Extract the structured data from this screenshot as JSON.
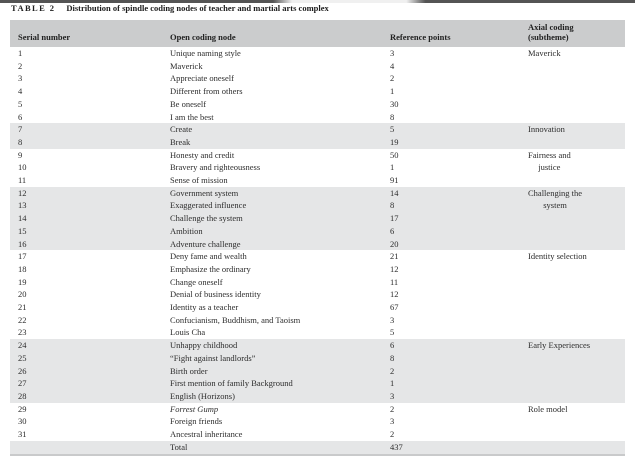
{
  "accent_colors": {
    "header_bg": "#cbcccd",
    "band_bg": "#e5e6e7",
    "text": "#2d2d2d"
  },
  "table": {
    "title_label": "TABLE 2",
    "title_text": "Distribution of spindle coding nodes of teacher and martial arts complex",
    "columns": [
      "Serial number",
      "Open coding node",
      "Reference points",
      "Axial coding\n(subtheme)"
    ],
    "groups": [
      {
        "axial": "Maverick",
        "shaded": false,
        "rows": [
          {
            "serial": "1",
            "node": "Unique naming style",
            "ref": "3"
          },
          {
            "serial": "2",
            "node": "Maverick",
            "ref": "4"
          },
          {
            "serial": "3",
            "node": "Appreciate oneself",
            "ref": "2"
          },
          {
            "serial": "4",
            "node": "Different from others",
            "ref": "1"
          },
          {
            "serial": "5",
            "node": "Be oneself",
            "ref": "30"
          },
          {
            "serial": "6",
            "node": "I am the best",
            "ref": "8"
          }
        ]
      },
      {
        "axial": "Innovation",
        "shaded": true,
        "rows": [
          {
            "serial": "7",
            "node": "Create",
            "ref": "5"
          },
          {
            "serial": "8",
            "node": "Break",
            "ref": "19"
          }
        ]
      },
      {
        "axial": "Fairness and\njustice",
        "shaded": false,
        "rows": [
          {
            "serial": "9",
            "node": "Honesty and credit",
            "ref": "50"
          },
          {
            "serial": "10",
            "node": "Bravery and righteousness",
            "ref": "1"
          },
          {
            "serial": "11",
            "node": "Sense of mission",
            "ref": "91"
          }
        ]
      },
      {
        "axial": "Challenging the\nsystem",
        "shaded": true,
        "rows": [
          {
            "serial": "12",
            "node": "Government system",
            "ref": "14"
          },
          {
            "serial": "13",
            "node": "Exaggerated influence",
            "ref": "8"
          },
          {
            "serial": "14",
            "node": "Challenge the system",
            "ref": "17"
          },
          {
            "serial": "15",
            "node": "Ambition",
            "ref": "6"
          },
          {
            "serial": "16",
            "node": "Adventure challenge",
            "ref": "20"
          }
        ]
      },
      {
        "axial": "Identity selection",
        "shaded": false,
        "rows": [
          {
            "serial": "17",
            "node": "Deny fame and wealth",
            "ref": "21"
          },
          {
            "serial": "18",
            "node": "Emphasize the ordinary",
            "ref": "12"
          },
          {
            "serial": "19",
            "node": "Change oneself",
            "ref": "11"
          },
          {
            "serial": "20",
            "node": "Denial of business identity",
            "ref": "12"
          },
          {
            "serial": "21",
            "node": "Identity as a teacher",
            "ref": "67"
          },
          {
            "serial": "22",
            "node": "Confucianism, Buddhism, and Taoism",
            "ref": "3"
          },
          {
            "serial": "23",
            "node": "Louis Cha",
            "ref": "5"
          }
        ]
      },
      {
        "axial": "Early Experiences",
        "shaded": true,
        "rows": [
          {
            "serial": "24",
            "node": "Unhappy childhood",
            "ref": "6"
          },
          {
            "serial": "25",
            "node": "“Fight against landlords”",
            "ref": "8"
          },
          {
            "serial": "26",
            "node": "Birth order",
            "ref": "2"
          },
          {
            "serial": "27",
            "node": "First mention of family Background",
            "ref": "1"
          },
          {
            "serial": "28",
            "node": "English (Horizons)",
            "ref": "3"
          }
        ]
      },
      {
        "axial": "Role model",
        "shaded": false,
        "rows": [
          {
            "serial": "29",
            "node": "Forrest Gump",
            "ref": "2",
            "italic": true
          },
          {
            "serial": "30",
            "node": "Foreign friends",
            "ref": "3"
          },
          {
            "serial": "31",
            "node": "Ancestral inheritance",
            "ref": "2"
          }
        ]
      }
    ],
    "total": {
      "label": "Total",
      "value": "437"
    }
  }
}
